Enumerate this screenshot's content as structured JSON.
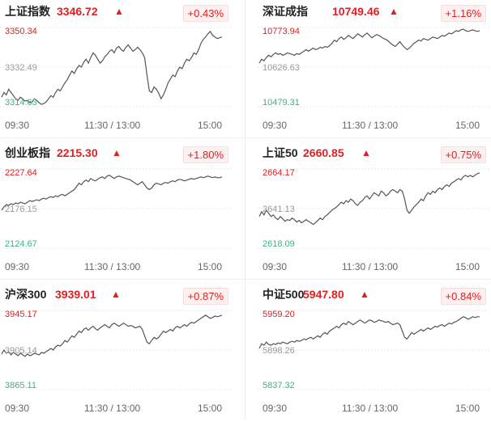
{
  "time_axis": [
    "09:30",
    "11:30 / 13:00",
    "15:00"
  ],
  "colors": {
    "up": "#e02020",
    "down": "#3fb27f",
    "line": "#555555",
    "grid": "#e8e8e8"
  },
  "panels": [
    {
      "name": "上证指数",
      "price": "3346.72",
      "arrow": "▲",
      "change": "+0.43%",
      "y_high": "3350.34",
      "y_mid": "3332.49",
      "y_low": "3314.63",
      "series": [
        0.12,
        0.18,
        0.15,
        0.22,
        0.18,
        0.14,
        0.1,
        0.08,
        0.12,
        0.1,
        0.07,
        0.08,
        0.05,
        0.06,
        0.1,
        0.08,
        0.05,
        0.03,
        0.04,
        0.06,
        0.1,
        0.14,
        0.12,
        0.18,
        0.22,
        0.2,
        0.25,
        0.3,
        0.34,
        0.4,
        0.45,
        0.42,
        0.48,
        0.52,
        0.5,
        0.56,
        0.6,
        0.55,
        0.62,
        0.68,
        0.65,
        0.6,
        0.55,
        0.58,
        0.63,
        0.66,
        0.7,
        0.72,
        0.68,
        0.74,
        0.76,
        0.72,
        0.7,
        0.75,
        0.78,
        0.74,
        0.7,
        0.72,
        0.75,
        0.72,
        0.68,
        0.62,
        0.4,
        0.2,
        0.18,
        0.25,
        0.22,
        0.17,
        0.1,
        0.15,
        0.22,
        0.3,
        0.35,
        0.4,
        0.38,
        0.45,
        0.5,
        0.48,
        0.55,
        0.6,
        0.58,
        0.62,
        0.68,
        0.66,
        0.72,
        0.8,
        0.85,
        0.88,
        0.92,
        0.95,
        0.9,
        0.88,
        0.86,
        0.87,
        0.88
      ]
    },
    {
      "name": "深证成指",
      "price": "10749.46",
      "arrow": "▲",
      "change": "+1.16%",
      "y_high": "10773.94",
      "y_mid": "10626.63",
      "y_low": "10479.31",
      "series": [
        0.55,
        0.6,
        0.58,
        0.62,
        0.65,
        0.63,
        0.66,
        0.68,
        0.66,
        0.67,
        0.65,
        0.66,
        0.68,
        0.67,
        0.66,
        0.65,
        0.67,
        0.66,
        0.68,
        0.7,
        0.72,
        0.7,
        0.72,
        0.74,
        0.72,
        0.73,
        0.75,
        0.74,
        0.76,
        0.75,
        0.77,
        0.8,
        0.84,
        0.82,
        0.86,
        0.88,
        0.85,
        0.87,
        0.9,
        0.88,
        0.86,
        0.89,
        0.92,
        0.9,
        0.88,
        0.91,
        0.93,
        0.9,
        0.87,
        0.89,
        0.91,
        0.9,
        0.88,
        0.86,
        0.85,
        0.83,
        0.8,
        0.78,
        0.76,
        0.79,
        0.82,
        0.78,
        0.75,
        0.72,
        0.74,
        0.77,
        0.8,
        0.82,
        0.84,
        0.83,
        0.86,
        0.85,
        0.84,
        0.86,
        0.88,
        0.87,
        0.86,
        0.88,
        0.9,
        0.89,
        0.91,
        0.93,
        0.92,
        0.94,
        0.96,
        0.95,
        0.97,
        0.98,
        0.96,
        0.95,
        0.96,
        0.97,
        0.96,
        0.95,
        0.96
      ]
    },
    {
      "name": "创业板指",
      "price": "2215.30",
      "arrow": "▲",
      "change": "+1.80%",
      "y_high": "2227.64",
      "y_mid": "2176.15",
      "y_low": "2124.67",
      "series": [
        0.48,
        0.52,
        0.55,
        0.54,
        0.56,
        0.55,
        0.57,
        0.56,
        0.58,
        0.57,
        0.56,
        0.58,
        0.6,
        0.59,
        0.6,
        0.61,
        0.6,
        0.62,
        0.63,
        0.62,
        0.64,
        0.65,
        0.64,
        0.66,
        0.65,
        0.67,
        0.68,
        0.66,
        0.68,
        0.7,
        0.72,
        0.74,
        0.78,
        0.82,
        0.8,
        0.84,
        0.86,
        0.84,
        0.88,
        0.86,
        0.85,
        0.87,
        0.89,
        0.9,
        0.88,
        0.91,
        0.92,
        0.9,
        0.88,
        0.9,
        0.91,
        0.9,
        0.89,
        0.88,
        0.87,
        0.86,
        0.84,
        0.82,
        0.8,
        0.82,
        0.84,
        0.8,
        0.76,
        0.74,
        0.76,
        0.8,
        0.82,
        0.81,
        0.8,
        0.82,
        0.83,
        0.82,
        0.84,
        0.85,
        0.84,
        0.86,
        0.87,
        0.86,
        0.85,
        0.86,
        0.87,
        0.88,
        0.87,
        0.88,
        0.89,
        0.9,
        0.89,
        0.9,
        0.91,
        0.9,
        0.89,
        0.9,
        0.89,
        0.89,
        0.9
      ]
    },
    {
      "name": "上证50",
      "price": "2660.85",
      "arrow": "▲",
      "change": "+0.75%",
      "y_high": "2664.17",
      "y_mid": "2641.13",
      "y_low": "2618.09",
      "series": [
        0.4,
        0.46,
        0.42,
        0.48,
        0.44,
        0.4,
        0.42,
        0.38,
        0.36,
        0.4,
        0.37,
        0.34,
        0.36,
        0.35,
        0.38,
        0.36,
        0.33,
        0.35,
        0.32,
        0.34,
        0.36,
        0.34,
        0.32,
        0.3,
        0.32,
        0.35,
        0.38,
        0.36,
        0.4,
        0.42,
        0.45,
        0.48,
        0.5,
        0.52,
        0.55,
        0.58,
        0.56,
        0.6,
        0.58,
        0.62,
        0.6,
        0.56,
        0.54,
        0.58,
        0.6,
        0.64,
        0.66,
        0.62,
        0.66,
        0.7,
        0.68,
        0.66,
        0.72,
        0.7,
        0.66,
        0.68,
        0.72,
        0.74,
        0.72,
        0.7,
        0.74,
        0.72,
        0.62,
        0.48,
        0.44,
        0.48,
        0.52,
        0.55,
        0.58,
        0.62,
        0.6,
        0.66,
        0.7,
        0.68,
        0.72,
        0.7,
        0.74,
        0.76,
        0.74,
        0.78,
        0.8,
        0.78,
        0.82,
        0.84,
        0.86,
        0.88,
        0.86,
        0.9,
        0.92,
        0.9,
        0.92,
        0.9,
        0.92,
        0.94,
        0.95
      ]
    },
    {
      "name": "沪深300",
      "price": "3939.01",
      "arrow": "▲",
      "change": "+0.87%",
      "y_high": "3945.17",
      "y_mid": "3905.14",
      "y_low": "3865.11",
      "series": [
        0.45,
        0.5,
        0.46,
        0.48,
        0.44,
        0.47,
        0.45,
        0.43,
        0.46,
        0.44,
        0.42,
        0.45,
        0.43,
        0.44,
        0.46,
        0.45,
        0.44,
        0.47,
        0.46,
        0.48,
        0.5,
        0.52,
        0.5,
        0.54,
        0.56,
        0.55,
        0.58,
        0.62,
        0.6,
        0.64,
        0.68,
        0.66,
        0.7,
        0.74,
        0.72,
        0.76,
        0.78,
        0.75,
        0.78,
        0.8,
        0.77,
        0.75,
        0.78,
        0.8,
        0.82,
        0.8,
        0.78,
        0.82,
        0.84,
        0.82,
        0.8,
        0.82,
        0.84,
        0.82,
        0.8,
        0.81,
        0.8,
        0.78,
        0.79,
        0.8,
        0.76,
        0.68,
        0.6,
        0.58,
        0.62,
        0.66,
        0.64,
        0.66,
        0.7,
        0.74,
        0.72,
        0.74,
        0.76,
        0.74,
        0.78,
        0.8,
        0.78,
        0.8,
        0.82,
        0.8,
        0.83,
        0.85,
        0.84,
        0.86,
        0.88,
        0.9,
        0.92,
        0.94,
        0.92,
        0.9,
        0.91,
        0.93,
        0.92,
        0.93,
        0.94
      ]
    },
    {
      "name": "中证500",
      "price": "5947.80",
      "arrow": "▲",
      "change": "+0.84%",
      "y_high": "5959.20",
      "y_mid": "5898.26",
      "y_low": "5837.32",
      "series": [
        0.52,
        0.58,
        0.56,
        0.6,
        0.57,
        0.56,
        0.58,
        0.57,
        0.59,
        0.58,
        0.6,
        0.59,
        0.58,
        0.6,
        0.61,
        0.6,
        0.62,
        0.61,
        0.62,
        0.64,
        0.63,
        0.65,
        0.66,
        0.64,
        0.66,
        0.68,
        0.66,
        0.7,
        0.72,
        0.7,
        0.74,
        0.76,
        0.78,
        0.8,
        0.78,
        0.82,
        0.84,
        0.82,
        0.86,
        0.84,
        0.82,
        0.84,
        0.86,
        0.88,
        0.86,
        0.84,
        0.86,
        0.88,
        0.87,
        0.85,
        0.86,
        0.88,
        0.87,
        0.86,
        0.85,
        0.86,
        0.84,
        0.82,
        0.83,
        0.84,
        0.82,
        0.74,
        0.66,
        0.64,
        0.68,
        0.72,
        0.7,
        0.72,
        0.74,
        0.76,
        0.74,
        0.76,
        0.78,
        0.76,
        0.78,
        0.8,
        0.79,
        0.81,
        0.82,
        0.8,
        0.82,
        0.84,
        0.83,
        0.85,
        0.86,
        0.88,
        0.9,
        0.92,
        0.91,
        0.89,
        0.9,
        0.92,
        0.91,
        0.92,
        0.92
      ]
    }
  ]
}
